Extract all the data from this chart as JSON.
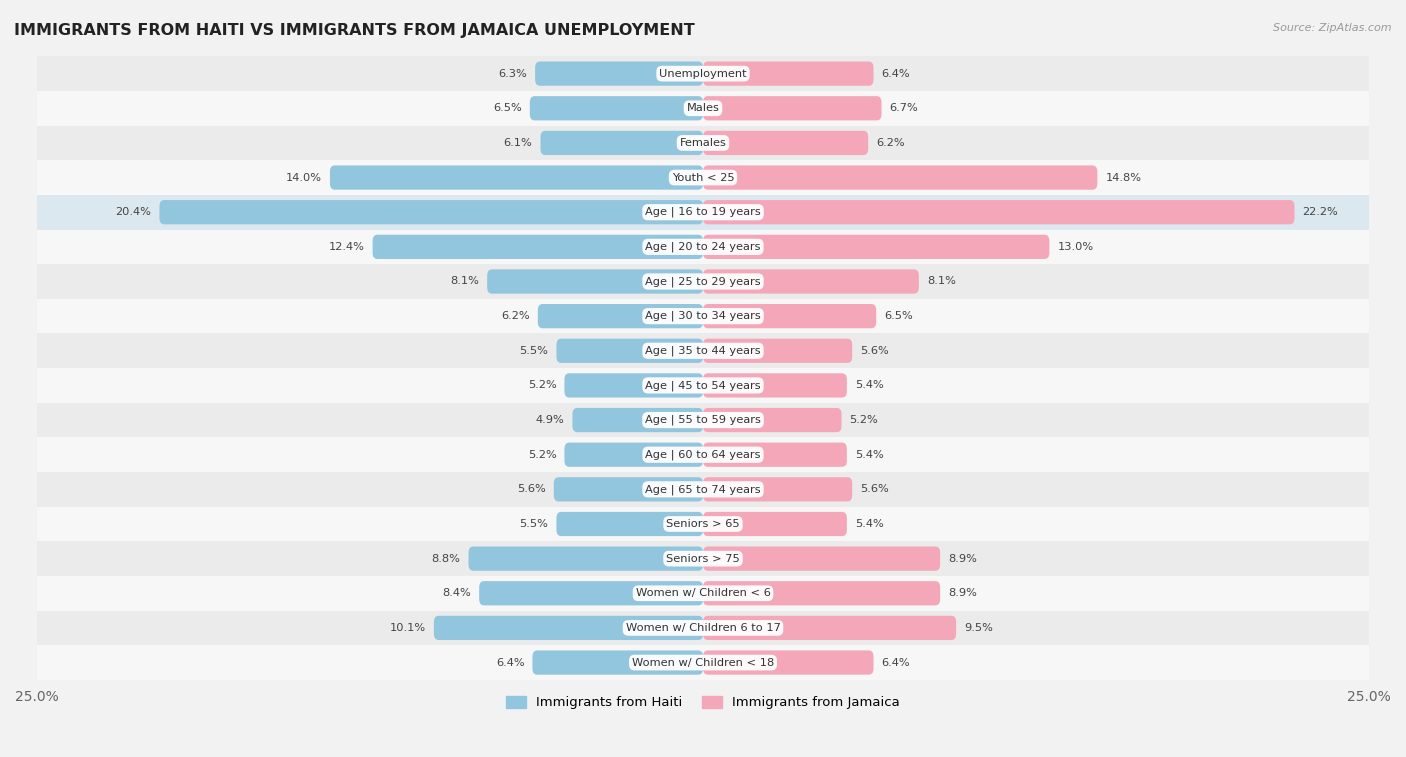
{
  "title": "IMMIGRANTS FROM HAITI VS IMMIGRANTS FROM JAMAICA UNEMPLOYMENT",
  "source": "Source: ZipAtlas.com",
  "categories": [
    "Unemployment",
    "Males",
    "Females",
    "Youth < 25",
    "Age | 16 to 19 years",
    "Age | 20 to 24 years",
    "Age | 25 to 29 years",
    "Age | 30 to 34 years",
    "Age | 35 to 44 years",
    "Age | 45 to 54 years",
    "Age | 55 to 59 years",
    "Age | 60 to 64 years",
    "Age | 65 to 74 years",
    "Seniors > 65",
    "Seniors > 75",
    "Women w/ Children < 6",
    "Women w/ Children 6 to 17",
    "Women w/ Children < 18"
  ],
  "haiti_values": [
    6.3,
    6.5,
    6.1,
    14.0,
    20.4,
    12.4,
    8.1,
    6.2,
    5.5,
    5.2,
    4.9,
    5.2,
    5.6,
    5.5,
    8.8,
    8.4,
    10.1,
    6.4
  ],
  "jamaica_values": [
    6.4,
    6.7,
    6.2,
    14.8,
    22.2,
    13.0,
    8.1,
    6.5,
    5.6,
    5.4,
    5.2,
    5.4,
    5.6,
    5.4,
    8.9,
    8.9,
    9.5,
    6.4
  ],
  "haiti_color": "#92c5de",
  "jamaica_color": "#f4a7b9",
  "haiti_color_highlight": "#6baed6",
  "jamaica_color_highlight": "#e87d9b",
  "haiti_label": "Immigrants from Haiti",
  "jamaica_label": "Immigrants from Jamaica",
  "xlim": 25.0,
  "row_colors_odd": "#ebebeb",
  "row_colors_even": "#f7f7f7",
  "highlight_row": 4,
  "highlight_row_color": "#dce8f0"
}
